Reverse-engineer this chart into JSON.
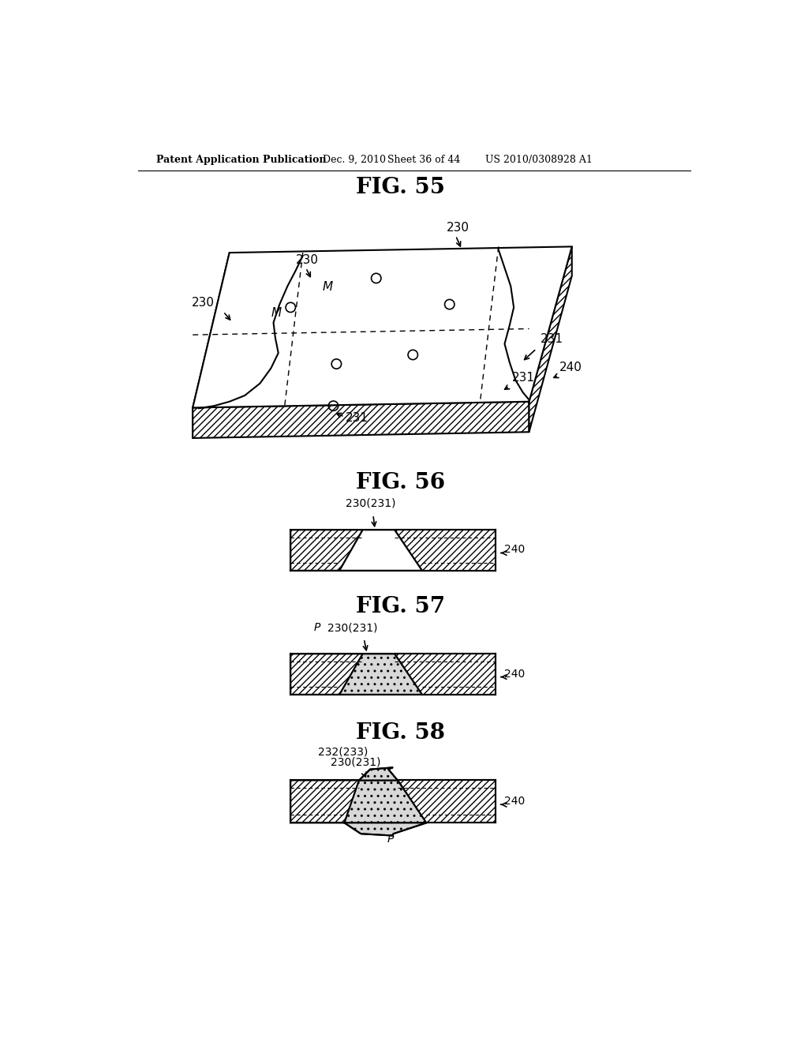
{
  "bg_color": "#ffffff",
  "header_text": "Patent Application Publication",
  "header_date": "Dec. 9, 2010",
  "header_sheet": "Sheet 36 of 44",
  "header_patent": "US 2010/0308928 A1",
  "fig55_title": "FIG. 55",
  "fig56_title": "FIG. 56",
  "fig57_title": "FIG. 57",
  "fig58_title": "FIG. 58"
}
